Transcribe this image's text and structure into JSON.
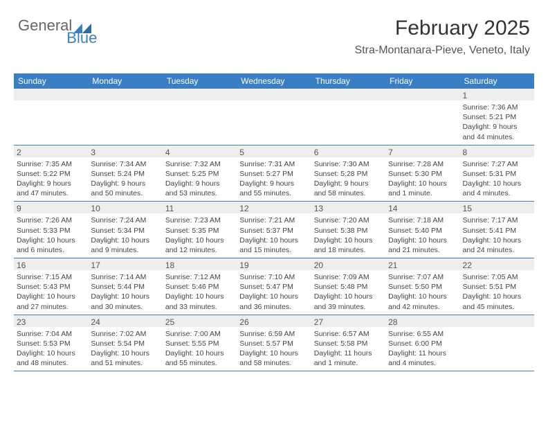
{
  "logo": {
    "text1": "General",
    "text2": "Blue"
  },
  "header": {
    "title": "February 2025",
    "subtitle": "Stra-Montanara-Pieve, Veneto, Italy"
  },
  "colors": {
    "brand_blue": "#3a7fc4",
    "header_bg": "#3a7fc4",
    "stripe_gray": "#eeeeee",
    "text": "#444444"
  },
  "day_headers": [
    "Sunday",
    "Monday",
    "Tuesday",
    "Wednesday",
    "Thursday",
    "Friday",
    "Saturday"
  ],
  "weeks": [
    [
      null,
      null,
      null,
      null,
      null,
      null,
      {
        "n": "1",
        "sunrise": "Sunrise: 7:36 AM",
        "sunset": "Sunset: 5:21 PM",
        "day1": "Daylight: 9 hours",
        "day2": "and 44 minutes."
      }
    ],
    [
      {
        "n": "2",
        "sunrise": "Sunrise: 7:35 AM",
        "sunset": "Sunset: 5:22 PM",
        "day1": "Daylight: 9 hours",
        "day2": "and 47 minutes."
      },
      {
        "n": "3",
        "sunrise": "Sunrise: 7:34 AM",
        "sunset": "Sunset: 5:24 PM",
        "day1": "Daylight: 9 hours",
        "day2": "and 50 minutes."
      },
      {
        "n": "4",
        "sunrise": "Sunrise: 7:32 AM",
        "sunset": "Sunset: 5:25 PM",
        "day1": "Daylight: 9 hours",
        "day2": "and 53 minutes."
      },
      {
        "n": "5",
        "sunrise": "Sunrise: 7:31 AM",
        "sunset": "Sunset: 5:27 PM",
        "day1": "Daylight: 9 hours",
        "day2": "and 55 minutes."
      },
      {
        "n": "6",
        "sunrise": "Sunrise: 7:30 AM",
        "sunset": "Sunset: 5:28 PM",
        "day1": "Daylight: 9 hours",
        "day2": "and 58 minutes."
      },
      {
        "n": "7",
        "sunrise": "Sunrise: 7:28 AM",
        "sunset": "Sunset: 5:30 PM",
        "day1": "Daylight: 10 hours",
        "day2": "and 1 minute."
      },
      {
        "n": "8",
        "sunrise": "Sunrise: 7:27 AM",
        "sunset": "Sunset: 5:31 PM",
        "day1": "Daylight: 10 hours",
        "day2": "and 4 minutes."
      }
    ],
    [
      {
        "n": "9",
        "sunrise": "Sunrise: 7:26 AM",
        "sunset": "Sunset: 5:33 PM",
        "day1": "Daylight: 10 hours",
        "day2": "and 6 minutes."
      },
      {
        "n": "10",
        "sunrise": "Sunrise: 7:24 AM",
        "sunset": "Sunset: 5:34 PM",
        "day1": "Daylight: 10 hours",
        "day2": "and 9 minutes."
      },
      {
        "n": "11",
        "sunrise": "Sunrise: 7:23 AM",
        "sunset": "Sunset: 5:35 PM",
        "day1": "Daylight: 10 hours",
        "day2": "and 12 minutes."
      },
      {
        "n": "12",
        "sunrise": "Sunrise: 7:21 AM",
        "sunset": "Sunset: 5:37 PM",
        "day1": "Daylight: 10 hours",
        "day2": "and 15 minutes."
      },
      {
        "n": "13",
        "sunrise": "Sunrise: 7:20 AM",
        "sunset": "Sunset: 5:38 PM",
        "day1": "Daylight: 10 hours",
        "day2": "and 18 minutes."
      },
      {
        "n": "14",
        "sunrise": "Sunrise: 7:18 AM",
        "sunset": "Sunset: 5:40 PM",
        "day1": "Daylight: 10 hours",
        "day2": "and 21 minutes."
      },
      {
        "n": "15",
        "sunrise": "Sunrise: 7:17 AM",
        "sunset": "Sunset: 5:41 PM",
        "day1": "Daylight: 10 hours",
        "day2": "and 24 minutes."
      }
    ],
    [
      {
        "n": "16",
        "sunrise": "Sunrise: 7:15 AM",
        "sunset": "Sunset: 5:43 PM",
        "day1": "Daylight: 10 hours",
        "day2": "and 27 minutes."
      },
      {
        "n": "17",
        "sunrise": "Sunrise: 7:14 AM",
        "sunset": "Sunset: 5:44 PM",
        "day1": "Daylight: 10 hours",
        "day2": "and 30 minutes."
      },
      {
        "n": "18",
        "sunrise": "Sunrise: 7:12 AM",
        "sunset": "Sunset: 5:46 PM",
        "day1": "Daylight: 10 hours",
        "day2": "and 33 minutes."
      },
      {
        "n": "19",
        "sunrise": "Sunrise: 7:10 AM",
        "sunset": "Sunset: 5:47 PM",
        "day1": "Daylight: 10 hours",
        "day2": "and 36 minutes."
      },
      {
        "n": "20",
        "sunrise": "Sunrise: 7:09 AM",
        "sunset": "Sunset: 5:48 PM",
        "day1": "Daylight: 10 hours",
        "day2": "and 39 minutes."
      },
      {
        "n": "21",
        "sunrise": "Sunrise: 7:07 AM",
        "sunset": "Sunset: 5:50 PM",
        "day1": "Daylight: 10 hours",
        "day2": "and 42 minutes."
      },
      {
        "n": "22",
        "sunrise": "Sunrise: 7:05 AM",
        "sunset": "Sunset: 5:51 PM",
        "day1": "Daylight: 10 hours",
        "day2": "and 45 minutes."
      }
    ],
    [
      {
        "n": "23",
        "sunrise": "Sunrise: 7:04 AM",
        "sunset": "Sunset: 5:53 PM",
        "day1": "Daylight: 10 hours",
        "day2": "and 48 minutes."
      },
      {
        "n": "24",
        "sunrise": "Sunrise: 7:02 AM",
        "sunset": "Sunset: 5:54 PM",
        "day1": "Daylight: 10 hours",
        "day2": "and 51 minutes."
      },
      {
        "n": "25",
        "sunrise": "Sunrise: 7:00 AM",
        "sunset": "Sunset: 5:55 PM",
        "day1": "Daylight: 10 hours",
        "day2": "and 55 minutes."
      },
      {
        "n": "26",
        "sunrise": "Sunrise: 6:59 AM",
        "sunset": "Sunset: 5:57 PM",
        "day1": "Daylight: 10 hours",
        "day2": "and 58 minutes."
      },
      {
        "n": "27",
        "sunrise": "Sunrise: 6:57 AM",
        "sunset": "Sunset: 5:58 PM",
        "day1": "Daylight: 11 hours",
        "day2": "and 1 minute."
      },
      {
        "n": "28",
        "sunrise": "Sunrise: 6:55 AM",
        "sunset": "Sunset: 6:00 PM",
        "day1": "Daylight: 11 hours",
        "day2": "and 4 minutes."
      },
      null
    ]
  ]
}
